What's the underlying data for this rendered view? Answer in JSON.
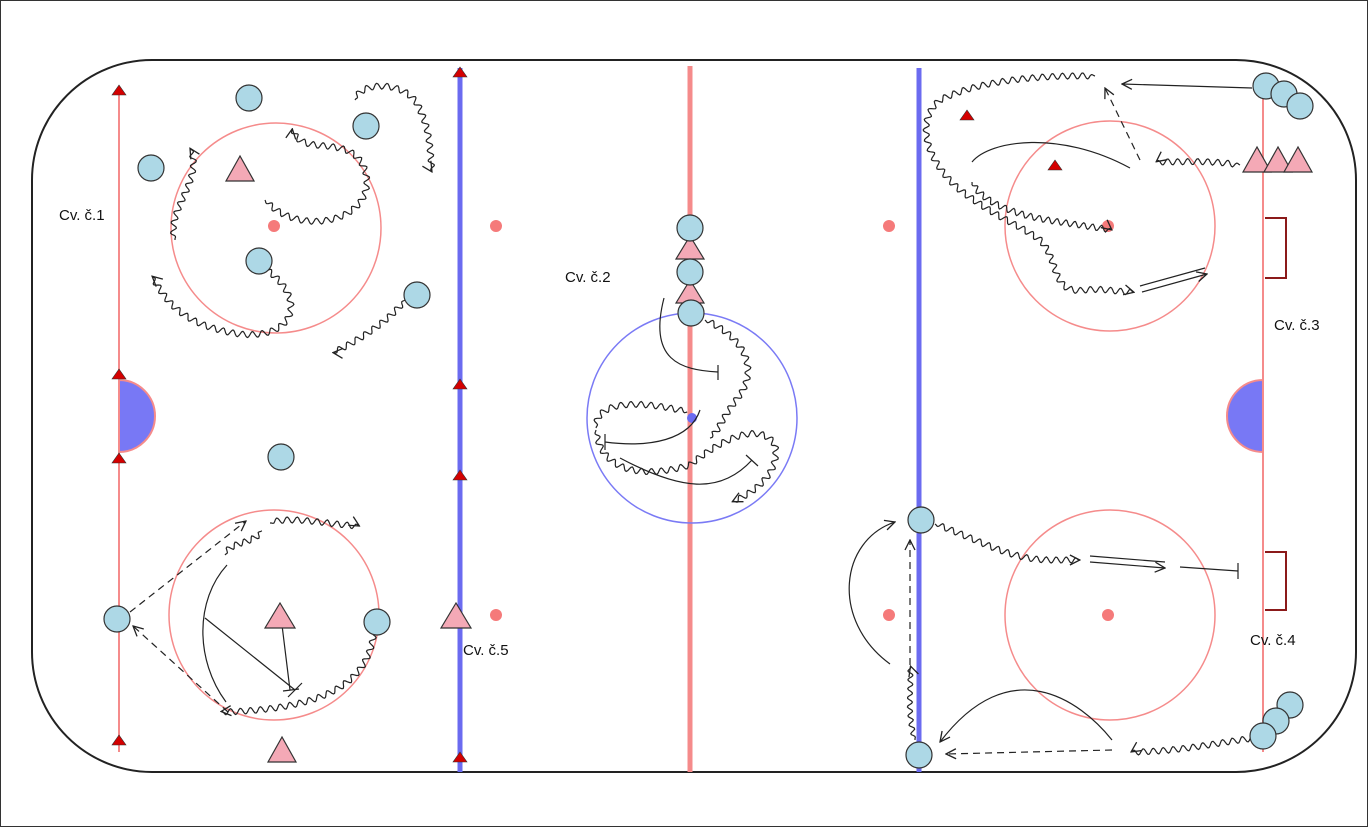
{
  "labels": {
    "drill1": "Cv. č.1",
    "drill2": "Cv. č.2",
    "drill3": "Cv. č.3",
    "drill4": "Cv. č.4",
    "drill5": "Cv. č.5"
  },
  "colors": {
    "rink_border": "#222222",
    "red_line": "#f58b8b",
    "blue_line": "#6b6bf0",
    "goal_crease": "#7878f5",
    "goal_net": "#8b1a1a",
    "player": "#add8e6",
    "cone": "#f4a9b6",
    "small_marker": "#d40000",
    "faceoff_dot": "#f57a7a"
  },
  "icons": {
    "player": "circle-player-icon",
    "cone": "triangle-cone-icon",
    "marker": "small-triangle-marker-icon",
    "skate_with_puck": "wavy-arrow-icon",
    "pass": "dashed-arrow-icon",
    "skate": "solid-arrow-icon",
    "shot": "double-line-arrow-icon",
    "stop": "t-stop-icon"
  }
}
